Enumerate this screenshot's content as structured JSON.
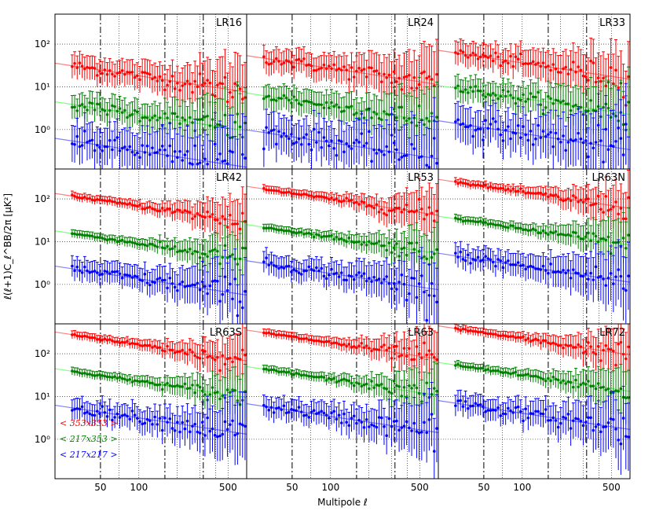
{
  "chart_data": {
    "type": "scatter",
    "xlabel": "Multipole ℓ",
    "ylabel": "ℓ(ℓ+1)C_ℓ^BB/2π [μK²]",
    "xscale": "log",
    "yscale": "log",
    "xlim": [
      22,
      700
    ],
    "ylim": [
      0.12,
      500
    ],
    "xticks": [
      50,
      100,
      500
    ],
    "yticks": [
      1,
      10,
      100
    ],
    "xtick_labels": [
      "50",
      "100",
      "500"
    ],
    "ytick_labels": [
      "10⁰",
      "10¹",
      "10²"
    ],
    "vlines_dashdot": [
      50,
      160,
      320
    ],
    "vlines_dotted": [
      70,
      100,
      200,
      300,
      400,
      500
    ],
    "panels": [
      {
        "label": "LR16",
        "amps": [
          20,
          2.5,
          0.35
        ]
      },
      {
        "label": "LR24",
        "amps": [
          30,
          4.0,
          0.55
        ]
      },
      {
        "label": "LR33",
        "amps": [
          40,
          6.0,
          0.9
        ]
      },
      {
        "label": "LR42",
        "amps": [
          75,
          10.0,
          1.5
        ]
      },
      {
        "label": "LR53",
        "amps": [
          110,
          14.0,
          2.0
        ]
      },
      {
        "label": "LR63N",
        "amps": [
          160,
          22.0,
          3.0
        ]
      },
      {
        "label": "LR63S",
        "amps": [
          180,
          25.0,
          3.5
        ]
      },
      {
        "label": "LR63",
        "amps": [
          200,
          28.0,
          3.8
        ]
      },
      {
        "label": "LR72",
        "amps": [
          250,
          35.0,
          4.5
        ]
      }
    ],
    "slope": -0.45,
    "series": [
      {
        "name": "< 353x353 >",
        "color": "#ff0000",
        "model_color": "#ff8080"
      },
      {
        "name": "< 217x353 >",
        "color": "#007f00",
        "model_color": "#80ff80"
      },
      {
        "name": "< 217x217 >",
        "color": "#0000ff",
        "model_color": "#8080ff"
      }
    ],
    "legend_location": "bottom-left of bottom-left panel"
  }
}
